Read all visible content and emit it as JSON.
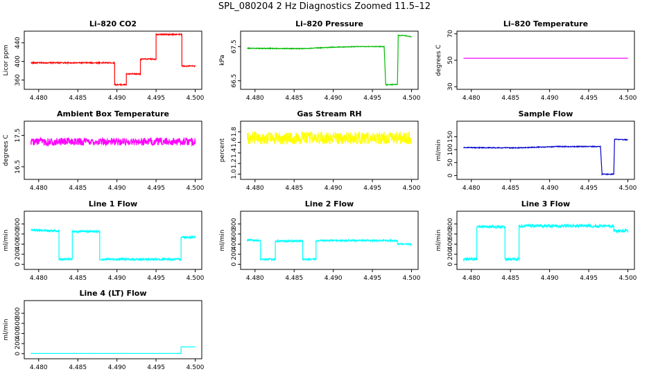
{
  "figure": {
    "title": "SPL_080204  2 Hz Diagnostics Zoomed 11.5–12"
  },
  "chart_data": [
    {
      "type": "line",
      "title": "Li–820 CO2",
      "ylabel": "Licor ppm",
      "color": "#ff0000",
      "xlim": [
        4.479,
        4.5
      ],
      "ylim": [
        340,
        465
      ],
      "xticks": [
        4.48,
        4.485,
        4.49,
        4.495,
        4.5
      ],
      "yticks": [
        360,
        400,
        440
      ],
      "x": [
        4.479,
        4.4897,
        4.4897,
        4.4912,
        4.4912,
        4.493,
        4.493,
        4.495,
        4.495,
        4.4983,
        4.4983,
        4.5
      ],
      "y": [
        397,
        397,
        350,
        350,
        373,
        373,
        405,
        405,
        458,
        458,
        390,
        390
      ],
      "noise": 1.2
    },
    {
      "type": "line",
      "title": "Li–820 Pressure",
      "ylabel": "kPa",
      "color": "#00bb00",
      "xlim": [
        4.479,
        4.5
      ],
      "ylim": [
        66.25,
        67.95
      ],
      "xticks": [
        4.48,
        4.485,
        4.49,
        4.495,
        4.5
      ],
      "yticks": [
        66.5,
        67.5
      ],
      "x": [
        4.479,
        4.486,
        4.49,
        4.493,
        4.4965,
        4.4967,
        4.4982,
        4.4983,
        4.499,
        4.5
      ],
      "y": [
        67.45,
        67.44,
        67.48,
        67.5,
        67.5,
        66.38,
        66.4,
        67.82,
        67.83,
        67.78
      ],
      "noise": 0.01
    },
    {
      "type": "line",
      "title": "Li–820 Temperature",
      "ylabel": "degrees C",
      "color": "#ff00ff",
      "xlim": [
        4.479,
        4.5
      ],
      "ylim": [
        28,
        72
      ],
      "xticks": [
        4.48,
        4.485,
        4.49,
        4.495,
        4.5
      ],
      "yticks": [
        30,
        50,
        70
      ],
      "x": [
        4.479,
        4.5
      ],
      "y": [
        51.5,
        51.5
      ],
      "noise": 0
    },
    {
      "type": "line",
      "title": "Ambient Box Temperature",
      "ylabel": "degrees C",
      "color": "#ff00ff",
      "xlim": [
        4.479,
        4.5
      ],
      "ylim": [
        16.1,
        17.95
      ],
      "xticks": [
        4.48,
        4.485,
        4.49,
        4.495,
        4.5
      ],
      "yticks": [
        16.5,
        17.5
      ],
      "x": [
        4.479,
        4.5
      ],
      "y": [
        17.3,
        17.3
      ],
      "noise": 0.12
    },
    {
      "type": "line",
      "title": "Gas Stream RH",
      "ylabel": "percent",
      "color": "#ffff00",
      "xlim": [
        4.479,
        4.5
      ],
      "ylim": [
        0.9,
        2.0
      ],
      "xticks": [
        4.48,
        4.485,
        4.49,
        4.495,
        4.5
      ],
      "yticks": [
        1.0,
        1.2,
        1.4,
        1.6,
        1.8
      ],
      "x": [
        4.479,
        4.5
      ],
      "y": [
        1.68,
        1.68
      ],
      "noise": 0.12
    },
    {
      "type": "line",
      "title": "Sample Flow",
      "ylabel": "ml/min",
      "color": "#0000cc",
      "xlim": [
        4.479,
        4.5
      ],
      "ylim": [
        -15,
        210
      ],
      "xticks": [
        4.48,
        4.485,
        4.49,
        4.495,
        4.5
      ],
      "yticks": [
        0,
        50,
        100,
        150
      ],
      "x": [
        4.479,
        4.486,
        4.491,
        4.4965,
        4.4967,
        4.4982,
        4.4983,
        4.5
      ],
      "y": [
        108,
        107,
        112,
        112,
        5,
        5,
        140,
        138
      ],
      "noise": 1.5
    },
    {
      "type": "line",
      "title": "Line 1 Flow",
      "ylabel": "ml/min",
      "color": "#00ffff",
      "xlim": [
        4.479,
        4.5
      ],
      "ylim": [
        -100,
        1050
      ],
      "xticks": [
        4.48,
        4.485,
        4.49,
        4.495,
        4.5
      ],
      "yticks": [
        0,
        200,
        400,
        600,
        800
      ],
      "x": [
        4.479,
        4.4826,
        4.4826,
        4.4843,
        4.4843,
        4.4878,
        4.4878,
        4.4982,
        4.4982,
        4.5
      ],
      "y": [
        680,
        660,
        100,
        100,
        650,
        650,
        100,
        100,
        540,
        540
      ],
      "noise": 20
    },
    {
      "type": "line",
      "title": "Line 2 Flow",
      "ylabel": "ml/min",
      "color": "#00ffff",
      "xlim": [
        4.479,
        4.5
      ],
      "ylim": [
        -100,
        1050
      ],
      "xticks": [
        4.48,
        4.485,
        4.49,
        4.495,
        4.5
      ],
      "yticks": [
        0,
        200,
        400,
        600,
        800
      ],
      "x": [
        4.479,
        4.4807,
        4.4807,
        4.4826,
        4.4826,
        4.4861,
        4.4861,
        4.4878,
        4.4878,
        4.4982,
        4.4982,
        4.5
      ],
      "y": [
        480,
        470,
        100,
        100,
        460,
        460,
        100,
        100,
        470,
        470,
        400,
        400
      ],
      "noise": 15
    },
    {
      "type": "line",
      "title": "Line 3 Flow",
      "ylabel": "ml/min",
      "color": "#00ffff",
      "xlim": [
        4.479,
        4.5
      ],
      "ylim": [
        -100,
        1050
      ],
      "xticks": [
        4.48,
        4.485,
        4.49,
        4.495,
        4.5
      ],
      "yticks": [
        0,
        200,
        400,
        600,
        800
      ],
      "x": [
        4.479,
        4.4807,
        4.4807,
        4.4843,
        4.4843,
        4.4861,
        4.4861,
        4.4982,
        4.4982,
        4.5
      ],
      "y": [
        100,
        100,
        740,
        740,
        100,
        100,
        760,
        760,
        660,
        660
      ],
      "noise": 30
    },
    {
      "type": "line",
      "title": "Line 4 (LT) Flow",
      "ylabel": "ml/min",
      "color": "#00ffff",
      "xlim": [
        4.479,
        4.5
      ],
      "ylim": [
        -100,
        1050
      ],
      "xticks": [
        4.48,
        4.485,
        4.49,
        4.495,
        4.5
      ],
      "yticks": [
        0,
        200,
        400,
        600,
        800
      ],
      "x": [
        4.479,
        4.4982,
        4.4982,
        4.5
      ],
      "y": [
        5,
        5,
        135,
        135
      ],
      "noise": 2
    }
  ]
}
